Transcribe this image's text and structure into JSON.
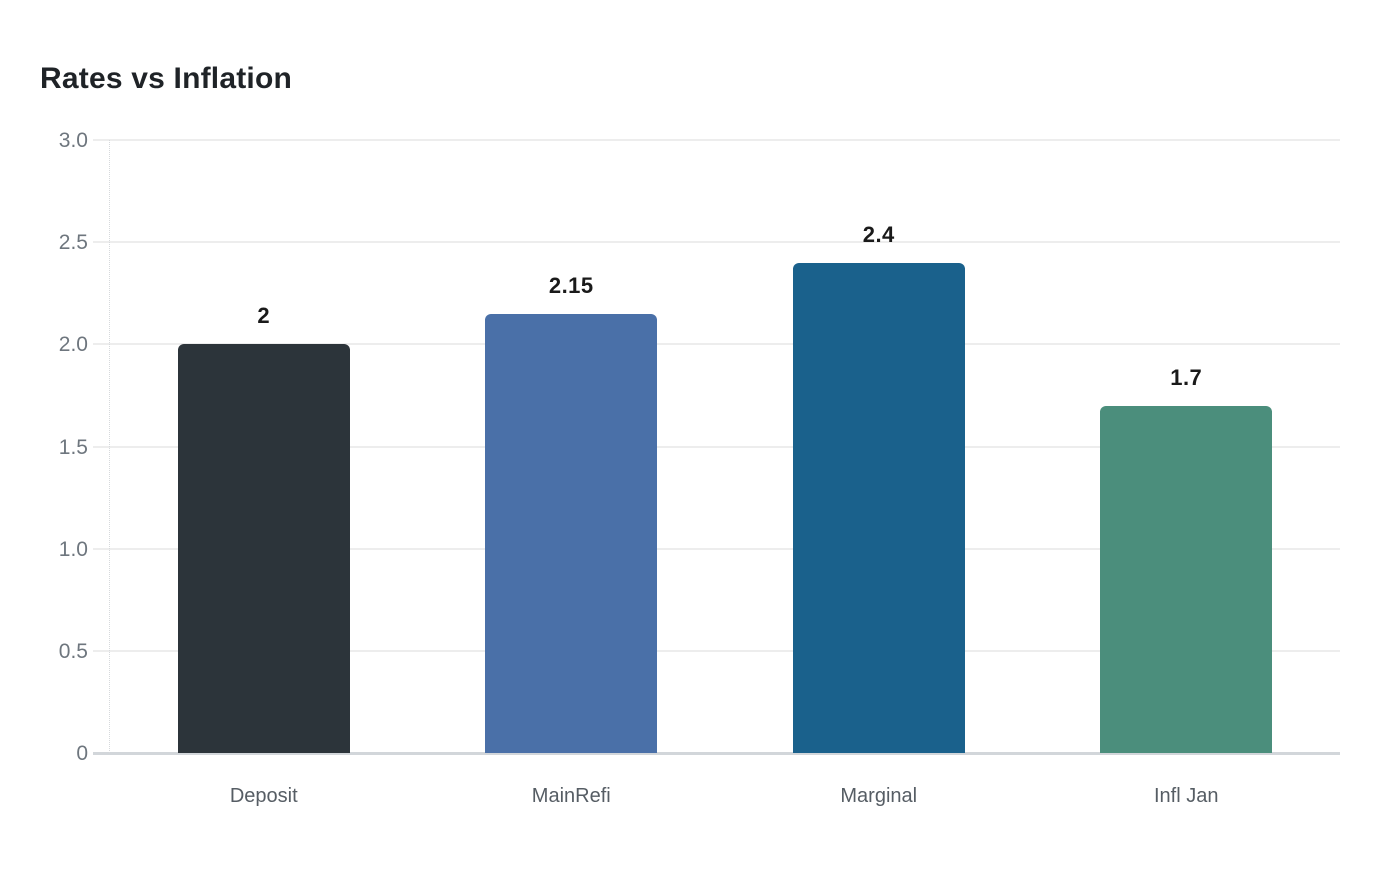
{
  "chart": {
    "title": "Rates vs Inflation"
  },
  "chart_data": {
    "type": "bar",
    "title": "Rates vs Inflation",
    "categories": [
      "Deposit",
      "MainRefi",
      "Marginal",
      "Infl Jan"
    ],
    "values": [
      2,
      2.15,
      2.4,
      1.7
    ],
    "value_labels": [
      "2",
      "2.15",
      "2.4",
      "1.7"
    ],
    "bar_colors": [
      "#2c343a",
      "#4a70a8",
      "#1a618c",
      "#4b8e7c"
    ],
    "xlabel": "",
    "ylabel": "",
    "ylim": [
      0,
      3.0
    ],
    "yticks": [
      0,
      0.5,
      1.0,
      1.5,
      2.0,
      2.5,
      3.0
    ],
    "ytick_labels": [
      "0",
      "0.5",
      "1.0",
      "1.5",
      "2.0",
      "2.5",
      "3.0"
    ],
    "grid": true,
    "legend": false,
    "colors": {
      "gridline": "#ededed",
      "baseline": "#d2d6da",
      "tick_text": "#6e767e",
      "category_text": "#565d64",
      "title_text": "#1f2327",
      "value_text": "#1a1a1a"
    }
  }
}
